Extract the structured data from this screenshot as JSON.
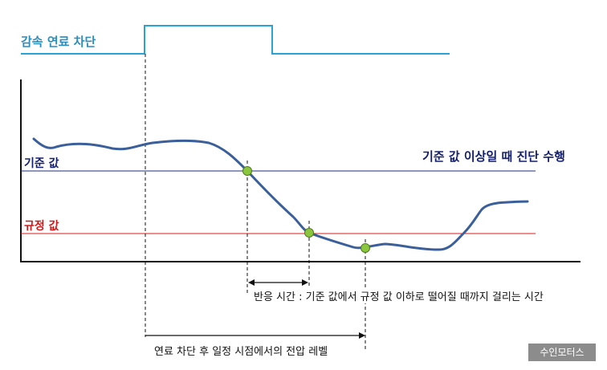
{
  "signal": {
    "label": "감속 연료 차단"
  },
  "thresholds": {
    "reference_label": "기준 값",
    "spec_label": "규정 값",
    "diagnosis_note": "기준 값 이상일 때 진단 수행"
  },
  "annotations": {
    "response_time": "반응 시간 : 기준 값에서 규정 값 이하로 떨어질 때까지 걸리는 시간",
    "fixed_time_level": "연료 차단 후 일정 시점에서의 전압 레벨"
  },
  "watermark": "수인모터스",
  "colors": {
    "signal": "#2aa3d4",
    "reference": "#1f2d7a",
    "spec": "#d81c1c",
    "curve": "#3a5f9a",
    "marker": "#8cc63f"
  }
}
